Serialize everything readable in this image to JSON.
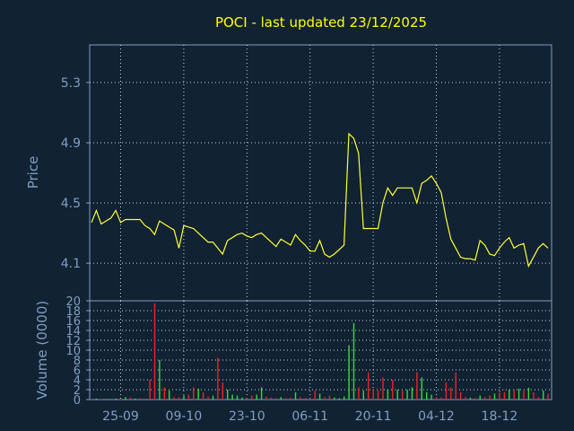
{
  "chart_data": [
    {
      "type": "line",
      "title": "POCI - last updated 23/12/2025",
      "ylabel": "Price",
      "ylim": [
        3.85,
        5.55
      ],
      "yticks": [
        "5.3",
        "4.9",
        "4.5",
        "4.1"
      ],
      "xticks": [
        "25-09",
        "09-10",
        "23-10",
        "06-11",
        "20-11",
        "04-12",
        "18-12"
      ],
      "grid": true,
      "series": [
        {
          "color": "#ffff33",
          "values": [
            4.37,
            4.45,
            4.36,
            4.38,
            4.4,
            4.45,
            4.37,
            4.39,
            4.39,
            4.39,
            4.39,
            4.35,
            4.33,
            4.29,
            4.38,
            4.36,
            4.34,
            4.32,
            4.2,
            4.35,
            4.34,
            4.33,
            4.3,
            4.27,
            4.24,
            4.24,
            4.2,
            4.16,
            4.25,
            4.27,
            4.29,
            4.3,
            4.28,
            4.27,
            4.29,
            4.3,
            4.27,
            4.24,
            4.21,
            4.26,
            4.24,
            4.22,
            4.29,
            4.25,
            4.22,
            4.18,
            4.18,
            4.25,
            4.16,
            4.14,
            4.16,
            4.19,
            4.22,
            4.96,
            4.93,
            4.83,
            4.33,
            4.33,
            4.33,
            4.33,
            4.5,
            4.6,
            4.55,
            4.6,
            4.6,
            4.6,
            4.6,
            4.5,
            4.63,
            4.65,
            4.68,
            4.63,
            4.57,
            4.4,
            4.26,
            4.2,
            4.14,
            4.13,
            4.13,
            4.12,
            4.25,
            4.22,
            4.16,
            4.15,
            4.2,
            4.24,
            4.27,
            4.2,
            4.22,
            4.23,
            4.08,
            4.14,
            4.2,
            4.23,
            4.2
          ]
        }
      ]
    },
    {
      "type": "bar",
      "ylabel": "Volume (0000)",
      "ylim": [
        0,
        20
      ],
      "yticks": [
        "20",
        "18",
        "16",
        "14",
        "12",
        "10",
        "8",
        "6",
        "4",
        "2",
        "0"
      ],
      "colors": {
        "up": "#33dd33",
        "down": "#ee2222"
      },
      "series": [
        {
          "values": [
            0.1,
            0.2,
            0.1,
            0.1,
            0.1,
            0.2,
            0.1,
            0.5,
            0.4,
            0.2,
            0.3,
            0.2,
            4,
            19.5,
            8,
            2.5,
            1.8,
            0.5,
            0.5,
            0.8,
            1,
            2.5,
            2.2,
            1.5,
            0.6,
            0.8,
            8.5,
            3.5,
            2,
            1,
            0.8,
            0.4,
            0.3,
            0.8,
            1,
            2.5,
            0.6,
            0.4,
            0.3,
            0.5,
            0.3,
            0.4,
            1.5,
            0.5,
            0.3,
            0.3,
            1.8,
            1.2,
            0.5,
            0.8,
            0.4,
            0.3,
            0.6,
            11,
            15.5,
            2.5,
            1.8,
            5.5,
            2.2,
            1.8,
            4.5,
            2,
            4,
            2,
            1.8,
            2,
            2.5,
            5.5,
            4.5,
            1.5,
            1,
            0.5,
            0.4,
            3.5,
            2.5,
            5.5,
            1.5,
            0.5,
            0.4,
            0.3,
            0.8,
            0.5,
            0.8,
            1.2,
            1.5,
            1.5,
            2,
            2,
            2.2,
            1.8,
            2.4,
            1.5,
            0.5,
            1.8,
            1.2
          ],
          "direction": [
            "d",
            "u",
            "d",
            "u",
            "u",
            "u",
            "d",
            "u",
            "d",
            "u",
            "d",
            "d",
            "d",
            "d",
            "u",
            "d",
            "u",
            "d",
            "d",
            "u",
            "d",
            "d",
            "u",
            "d",
            "d",
            "u",
            "d",
            "d",
            "u",
            "u",
            "u",
            "u",
            "d",
            "d",
            "u",
            "u",
            "d",
            "d",
            "d",
            "u",
            "d",
            "d",
            "u",
            "d",
            "d",
            "d",
            "d",
            "u",
            "d",
            "d",
            "u",
            "u",
            "u",
            "u",
            "u",
            "d",
            "u",
            "d",
            "d",
            "d",
            "d",
            "u",
            "d",
            "u",
            "d",
            "u",
            "u",
            "d",
            "u",
            "u",
            "u",
            "d",
            "d",
            "d",
            "d",
            "d",
            "d",
            "d",
            "u",
            "d",
            "u",
            "d",
            "d",
            "u",
            "d",
            "d",
            "u",
            "d",
            "u",
            "d",
            "u",
            "d",
            "d",
            "u",
            "d"
          ]
        }
      ]
    }
  ]
}
